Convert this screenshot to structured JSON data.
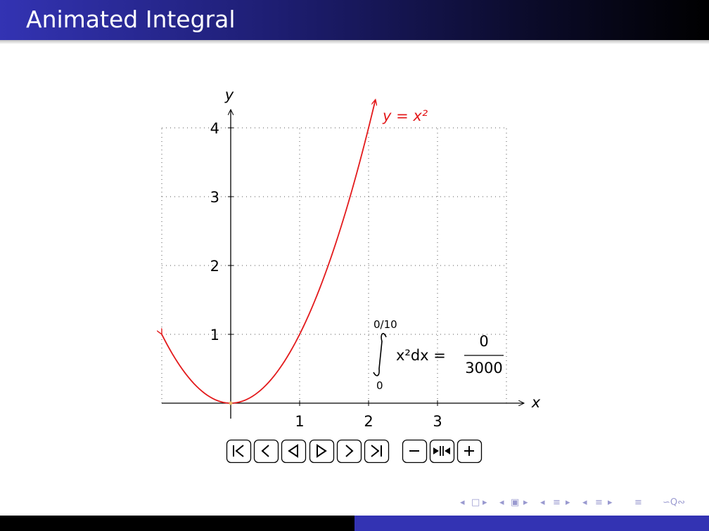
{
  "slide": {
    "title": "Animated Integral"
  },
  "chart_data": {
    "type": "line",
    "xlabel": "x",
    "ylabel": "y",
    "xlim": [
      -1,
      4.2
    ],
    "ylim": [
      0,
      4.3
    ],
    "x_ticks": [
      "1",
      "2",
      "3"
    ],
    "y_ticks": [
      "1",
      "2",
      "3",
      "4"
    ],
    "grid": "dotted",
    "series": [
      {
        "name": "y = x²",
        "color": "#e31a1c",
        "function": "x^2",
        "x_range": [
          -1,
          2.1
        ]
      }
    ],
    "annotation": {
      "upper_limit": "0/10",
      "lower_limit": "0",
      "integrand": "x²dx =",
      "numerator": "0",
      "denominator": "3000"
    }
  },
  "controls": {
    "buttons": [
      {
        "id": "first",
        "icon": "skip-to-first-icon"
      },
      {
        "id": "prev-step",
        "icon": "step-back-icon"
      },
      {
        "id": "play-back",
        "icon": "play-backward-icon"
      },
      {
        "id": "play",
        "icon": "play-forward-icon"
      },
      {
        "id": "next-step",
        "icon": "step-forward-icon"
      },
      {
        "id": "last",
        "icon": "skip-to-last-icon"
      },
      {
        "id": "slower",
        "icon": "minus-icon"
      },
      {
        "id": "reset-speed",
        "icon": "reset-speed-icon"
      },
      {
        "id": "faster",
        "icon": "plus-icon"
      }
    ]
  },
  "navigation": {
    "symbols": [
      "◂",
      "□",
      "▸",
      "◂",
      "▣",
      "▸",
      "◂",
      "≡",
      "▸",
      "◂",
      "≡",
      "▸",
      "≡",
      "∽Q∾"
    ]
  }
}
